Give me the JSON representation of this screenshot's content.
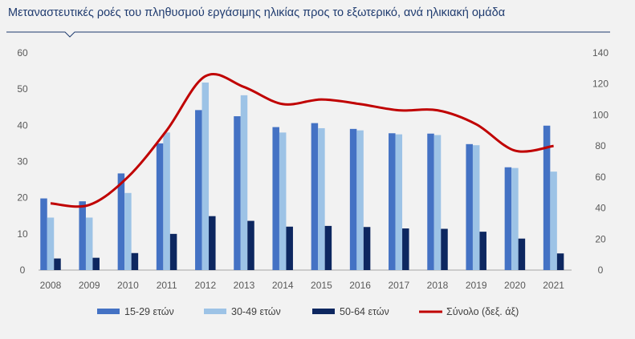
{
  "chart_data": {
    "type": "bar",
    "title": "Μεταναστευτικές ροές του πληθυσμού εργάσιμης ηλικίας προς το εξωτερικό, ανά ηλικιακή ομάδα",
    "categories": [
      "2008",
      "2009",
      "2010",
      "2011",
      "2012",
      "2013",
      "2014",
      "2015",
      "2016",
      "2017",
      "2018",
      "2019",
      "2020",
      "2021"
    ],
    "series": [
      {
        "name": "15-29 ετών",
        "type": "bar",
        "axis": "left",
        "color": "#4472c4",
        "values": [
          19.8,
          19.0,
          26.7,
          35.0,
          44.2,
          42.5,
          39.5,
          40.6,
          39.0,
          37.8,
          37.7,
          34.8,
          28.4,
          39.9
        ]
      },
      {
        "name": "30-49 ετών",
        "type": "bar",
        "axis": "left",
        "color": "#9dc3e6",
        "values": [
          14.5,
          14.5,
          21.3,
          38.0,
          51.8,
          48.3,
          38.0,
          39.2,
          38.6,
          37.5,
          37.3,
          34.5,
          28.2,
          27.2
        ]
      },
      {
        "name": "50-64 ετών",
        "type": "bar",
        "axis": "left",
        "color": "#0d2760",
        "values": [
          3.2,
          3.4,
          4.7,
          10.0,
          14.9,
          13.6,
          12.0,
          12.2,
          11.9,
          11.5,
          11.4,
          10.6,
          8.7,
          4.6
        ]
      },
      {
        "name": "Σύνολο (δεξ. άξ)",
        "type": "line",
        "axis": "right",
        "color": "#c00000",
        "values": [
          43,
          42,
          60,
          90,
          125,
          118,
          107,
          110,
          107,
          103,
          103,
          94,
          77,
          80
        ]
      }
    ],
    "y_left": {
      "min": 0,
      "max": 60,
      "ticks": [
        0,
        10,
        20,
        30,
        40,
        50,
        60
      ]
    },
    "y_right": {
      "min": 0,
      "max": 140,
      "ticks": [
        0,
        20,
        40,
        60,
        80,
        100,
        120,
        140
      ]
    },
    "grid": false,
    "legend_position": "bottom"
  },
  "colors": {
    "title": "#1f3b6f",
    "title_rule": "#1f3b6f",
    "background": "#f2f2f2"
  }
}
